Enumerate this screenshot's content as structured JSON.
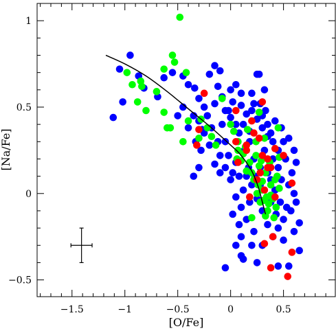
{
  "chart_data": {
    "type": "scatter",
    "xlabel": "[O/Fe]",
    "ylabel": "[Na/Fe]",
    "xlim": [
      -1.83,
      0.99
    ],
    "ylim": [
      -0.597,
      1.1
    ],
    "x_ticks": [
      {
        "value": -1.5,
        "label": "−1.5"
      },
      {
        "value": -1.0,
        "label": "−1"
      },
      {
        "value": -0.5,
        "label": "−0.5"
      },
      {
        "value": 0.0,
        "label": "0"
      },
      {
        "value": 0.5,
        "label": "0.5"
      }
    ],
    "y_ticks": [
      {
        "value": -0.5,
        "label": "−0.5"
      },
      {
        "value": 0.0,
        "label": "0"
      },
      {
        "value": 0.5,
        "label": "0.5"
      },
      {
        "value": 1.0,
        "label": "1"
      }
    ],
    "x_minor_step": 0.1,
    "y_minor_step": 0.1,
    "grid": false,
    "legend": "none",
    "series": [
      {
        "color": "#0000ff",
        "points": [
          [
            -0.95,
            0.8
          ],
          [
            -1.05,
            0.72
          ],
          [
            -1.11,
            0.44
          ],
          [
            -1.02,
            0.53
          ],
          [
            -0.87,
            0.68
          ],
          [
            -0.82,
            0.61
          ],
          [
            -0.69,
            0.56
          ],
          [
            -0.63,
            0.67
          ],
          [
            -0.55,
            0.7
          ],
          [
            -0.45,
            0.68
          ],
          [
            -0.4,
            0.63
          ],
          [
            -0.34,
            0.61
          ],
          [
            -0.3,
            0.55
          ],
          [
            -0.25,
            0.5
          ],
          [
            -0.2,
            0.69
          ],
          [
            -0.15,
            0.74
          ],
          [
            -0.1,
            0.71
          ],
          [
            -0.12,
            0.62
          ],
          [
            -0.08,
            0.56
          ],
          [
            -0.05,
            0.48
          ],
          [
            0.0,
            0.6
          ],
          [
            0.05,
            0.63
          ],
          [
            0.1,
            0.58
          ],
          [
            0.2,
            0.58
          ],
          [
            0.25,
            0.69
          ],
          [
            0.27,
            0.69
          ],
          [
            0.32,
            0.6
          ],
          [
            0.02,
            0.53
          ],
          [
            0.1,
            0.51
          ],
          [
            0.15,
            0.46
          ],
          [
            0.2,
            0.48
          ],
          [
            0.25,
            0.43
          ],
          [
            0.3,
            0.38
          ],
          [
            0.35,
            0.33
          ],
          [
            0.4,
            0.3
          ],
          [
            0.45,
            0.25
          ],
          [
            0.5,
            0.3
          ],
          [
            0.55,
            0.32
          ],
          [
            0.6,
            0.25
          ],
          [
            0.62,
            0.18
          ],
          [
            0.58,
            0.12
          ],
          [
            0.55,
            0.05
          ],
          [
            0.6,
            0.0
          ],
          [
            0.62,
            -0.05
          ],
          [
            0.57,
            -0.1
          ],
          [
            0.5,
            -0.15
          ],
          [
            0.45,
            -0.2
          ],
          [
            0.4,
            -0.25
          ],
          [
            0.5,
            -0.27
          ],
          [
            0.6,
            -0.22
          ],
          [
            0.65,
            -0.17
          ],
          [
            0.65,
            -0.33
          ],
          [
            0.55,
            -0.42
          ],
          [
            0.45,
            -0.42
          ],
          [
            0.3,
            -0.3
          ],
          [
            0.2,
            -0.3
          ],
          [
            0.1,
            -0.25
          ],
          [
            0.05,
            -0.3
          ],
          [
            -0.05,
            -0.43
          ],
          [
            0.1,
            -0.36
          ],
          [
            0.12,
            -0.38
          ],
          [
            0.25,
            -0.4
          ],
          [
            0.15,
            -0.15
          ],
          [
            0.1,
            -0.08
          ],
          [
            0.05,
            -0.02
          ],
          [
            0.0,
            0.08
          ],
          [
            -0.05,
            0.15
          ],
          [
            -0.1,
            0.22
          ],
          [
            -0.15,
            0.17
          ],
          [
            -0.1,
            0.12
          ],
          [
            -0.2,
            0.28
          ],
          [
            -0.25,
            0.35
          ],
          [
            -0.3,
            0.42
          ],
          [
            -0.35,
            0.45
          ],
          [
            -0.4,
            0.38
          ],
          [
            -0.33,
            0.3
          ],
          [
            -0.28,
            0.25
          ],
          [
            -0.18,
            0.38
          ],
          [
            -0.05,
            0.3
          ],
          [
            0.08,
            0.35
          ],
          [
            0.13,
            0.25
          ],
          [
            0.18,
            0.3
          ],
          [
            0.22,
            0.2
          ],
          [
            0.28,
            0.15
          ],
          [
            0.35,
            0.12
          ],
          [
            0.4,
            0.2
          ],
          [
            0.45,
            0.15
          ],
          [
            0.48,
            0.08
          ],
          [
            0.42,
            0.02
          ],
          [
            0.38,
            -0.05
          ],
          [
            0.3,
            -0.1
          ],
          [
            0.25,
            -0.03
          ],
          [
            0.2,
            0.05
          ],
          [
            0.15,
            0.1
          ],
          [
            0.05,
            0.18
          ],
          [
            -0.02,
            0.22
          ],
          [
            -0.12,
            0.3
          ],
          [
            -0.22,
            0.45
          ],
          [
            -0.27,
            0.37
          ],
          [
            -0.08,
            0.4
          ],
          [
            0.0,
            0.44
          ],
          [
            0.05,
            0.4
          ],
          [
            0.12,
            0.4
          ],
          [
            0.18,
            0.36
          ],
          [
            0.3,
            0.45
          ],
          [
            0.35,
            0.4
          ],
          [
            0.38,
            0.35
          ],
          [
            0.32,
            0.25
          ],
          [
            0.28,
            0.05
          ],
          [
            0.18,
            -0.05
          ],
          [
            0.12,
            0.02
          ],
          [
            0.08,
            0.1
          ],
          [
            0.02,
            0.12
          ],
          [
            -0.3,
            0.15
          ],
          [
            -0.35,
            0.1
          ],
          [
            -0.45,
            0.5
          ],
          [
            -0.5,
            0.45
          ],
          [
            -0.15,
            0.52
          ],
          [
            -0.02,
            0.48
          ],
          [
            0.22,
            0.52
          ],
          [
            0.28,
            0.52
          ],
          [
            0.33,
            0.48
          ],
          [
            0.42,
            0.42
          ],
          [
            0.48,
            0.38
          ],
          [
            0.52,
            0.2
          ],
          [
            0.47,
            -0.05
          ],
          [
            0.53,
            -0.08
          ],
          [
            0.35,
            -0.18
          ],
          [
            0.22,
            -0.22
          ],
          [
            0.08,
            -0.18
          ],
          [
            0.02,
            -0.12
          ],
          [
            0.17,
            0.15
          ],
          [
            0.23,
            0.1
          ],
          [
            0.38,
            0.08
          ],
          [
            0.43,
            -0.12
          ]
        ]
      },
      {
        "color": "#00ff00",
        "points": [
          [
            -0.48,
            1.02
          ],
          [
            -0.55,
            0.8
          ],
          [
            -0.53,
            0.76
          ],
          [
            -0.63,
            0.72
          ],
          [
            -0.98,
            0.7
          ],
          [
            -0.93,
            0.63
          ],
          [
            -0.85,
            0.65
          ],
          [
            -0.84,
            0.62
          ],
          [
            -0.7,
            0.59
          ],
          [
            -0.42,
            0.7
          ],
          [
            -0.88,
            0.53
          ],
          [
            -0.8,
            0.48
          ],
          [
            -0.63,
            0.47
          ],
          [
            -0.6,
            0.38
          ],
          [
            -0.57,
            0.38
          ],
          [
            -0.45,
            0.3
          ],
          [
            -0.4,
            0.42
          ],
          [
            -0.28,
            0.43
          ],
          [
            -0.22,
            0.38
          ],
          [
            -0.3,
            0.32
          ],
          [
            -0.18,
            0.33
          ],
          [
            -0.14,
            0.28
          ],
          [
            -0.08,
            0.55
          ],
          [
            0.0,
            0.4
          ],
          [
            0.03,
            0.36
          ],
          [
            0.07,
            0.3
          ],
          [
            0.14,
            0.27
          ],
          [
            0.24,
            0.3
          ],
          [
            0.32,
            0.32
          ],
          [
            0.1,
            0.19
          ],
          [
            0.18,
            0.18
          ],
          [
            0.15,
            0.13
          ],
          [
            0.06,
            0.2
          ],
          [
            0.22,
            0.08
          ],
          [
            0.26,
            0.05
          ],
          [
            0.3,
            0.02
          ],
          [
            0.34,
            -0.02
          ],
          [
            0.28,
            -0.05
          ],
          [
            0.36,
            -0.06
          ],
          [
            0.4,
            -0.03
          ],
          [
            0.38,
            0.05
          ],
          [
            0.42,
            0.08
          ],
          [
            0.46,
            0.03
          ],
          [
            0.33,
            0.12
          ],
          [
            0.27,
            0.16
          ],
          [
            0.24,
            0.22
          ],
          [
            0.35,
            -0.1
          ],
          [
            0.41,
            -0.14
          ],
          [
            0.33,
            -0.13
          ],
          [
            0.2,
            -0.14
          ],
          [
            0.12,
            0.23
          ],
          [
            0.07,
            0.25
          ],
          [
            0.2,
            0.12
          ],
          [
            0.25,
            0.0
          ],
          [
            0.3,
            0.07
          ],
          [
            0.43,
            -0.08
          ],
          [
            0.31,
            -0.04
          ],
          [
            0.37,
            0.18
          ],
          [
            0.46,
            0.21
          ],
          [
            0.45,
            0.38
          ],
          [
            0.16,
            0.37
          ],
          [
            0.27,
            0.47
          ],
          [
            0.29,
            0.19
          ],
          [
            0.38,
            -0.01
          ],
          [
            0.44,
            0.1
          ]
        ]
      },
      {
        "color": "#ff0000",
        "points": [
          [
            -0.25,
            0.58
          ],
          [
            -0.3,
            0.37
          ],
          [
            -0.32,
            0.28
          ],
          [
            0.05,
            0.48
          ],
          [
            0.3,
            0.53
          ],
          [
            0.2,
            0.42
          ],
          [
            0.22,
            0.35
          ],
          [
            0.27,
            0.32
          ],
          [
            0.15,
            0.28
          ],
          [
            0.3,
            0.22
          ],
          [
            0.35,
            0.2
          ],
          [
            0.42,
            0.26
          ],
          [
            0.5,
            0.22
          ],
          [
            0.28,
            0.12
          ],
          [
            0.25,
            0.08
          ],
          [
            0.32,
            0.02
          ],
          [
            0.42,
            -0.02
          ],
          [
            0.58,
            0.06
          ],
          [
            0.15,
            0.25
          ],
          [
            0.07,
            0.18
          ],
          [
            0.32,
            -0.29
          ],
          [
            0.4,
            -0.25
          ],
          [
            0.58,
            -0.34
          ],
          [
            0.38,
            -0.43
          ],
          [
            0.54,
            -0.48
          ],
          [
            0.35,
            0.15
          ],
          [
            0.05,
            0.3
          ],
          [
            0.38,
            0.15
          ],
          [
            0.18,
            -0.02
          ]
        ]
      }
    ],
    "trend_curve": [
      [
        -1.18,
        0.8
      ],
      [
        -1.0,
        0.75
      ],
      [
        -0.8,
        0.68
      ],
      [
        -0.6,
        0.59
      ],
      [
        -0.4,
        0.49
      ],
      [
        -0.2,
        0.39
      ],
      [
        0.0,
        0.28
      ],
      [
        0.1,
        0.22
      ],
      [
        0.2,
        0.13
      ],
      [
        0.26,
        0.04
      ],
      [
        0.3,
        -0.05
      ],
      [
        0.33,
        -0.12
      ]
    ],
    "error_bar": {
      "x": -1.41,
      "y": -0.3,
      "xerr": 0.1,
      "yerr": 0.1
    }
  }
}
